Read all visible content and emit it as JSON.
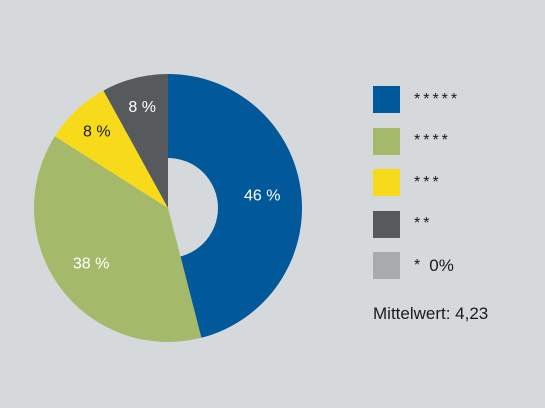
{
  "chart_data": {
    "type": "pie",
    "variant": "donut",
    "slices": [
      {
        "label": "*****",
        "value": 46,
        "display": "46 %",
        "color": "#01589a",
        "text_color": "#ffffff"
      },
      {
        "label": "****",
        "value": 38,
        "display": "38 %",
        "color": "#a4b96a",
        "text_color": "#ffffff"
      },
      {
        "label": "***",
        "value": 8,
        "display": "8 %",
        "color": "#f7db1b",
        "text_color": "#1a1a1a"
      },
      {
        "label": "**",
        "value": 8,
        "display": "8 %",
        "color": "#575a5c",
        "text_color": "#ffffff"
      },
      {
        "label": "*",
        "value": 0,
        "display": "0%",
        "color": "#a8aaab",
        "text_color": "#1a1a1a"
      }
    ],
    "legend_position": "right"
  },
  "summary": {
    "mean_text": "Mittelwert: 4,23"
  },
  "colors": {
    "background": "#d5d9dc",
    "hole": "#d5d9dc"
  }
}
